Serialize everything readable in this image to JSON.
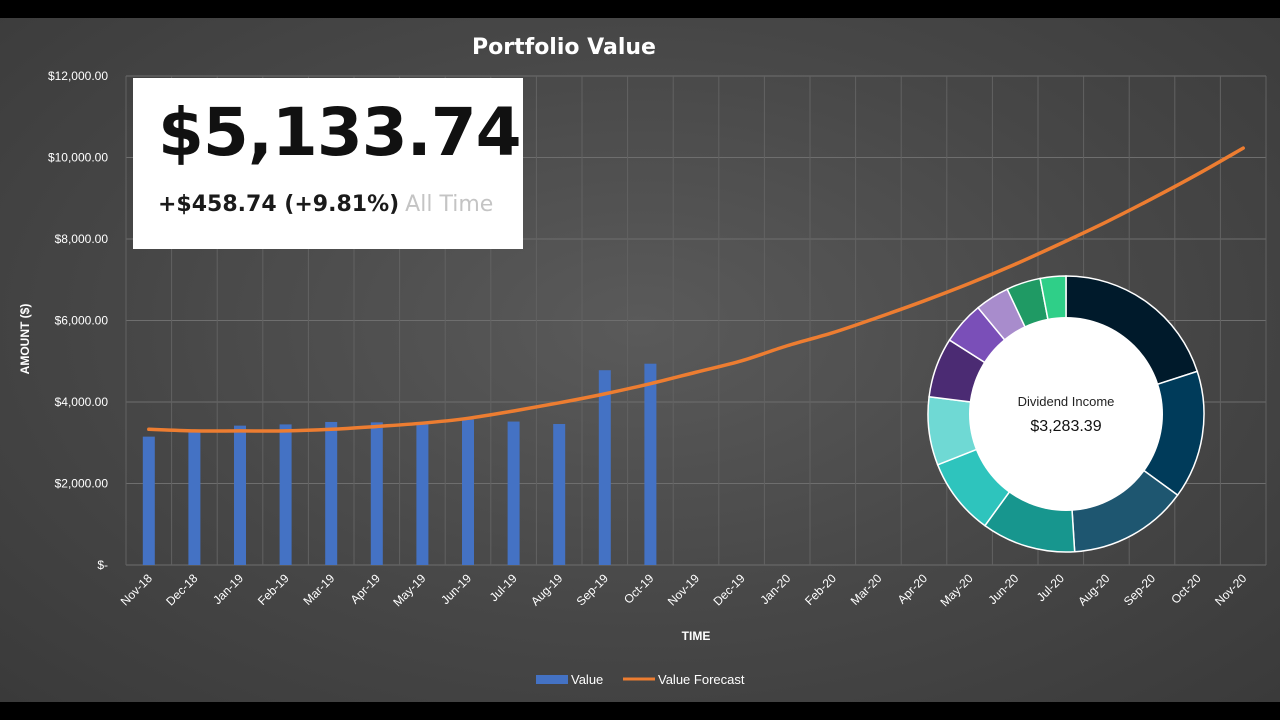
{
  "chart_data": [
    {
      "type": "bar+line",
      "title": "Portfolio Value",
      "xlabel": "TIME",
      "ylabel": "AMOUNT ($)",
      "ylim": [
        0,
        12000
      ],
      "yticks": [
        0,
        2000,
        4000,
        6000,
        8000,
        10000,
        12000
      ],
      "ytick_labels": [
        "$-",
        "$2,000.00",
        "$4,000.00",
        "$6,000.00",
        "$8,000.00",
        "$10,000.00",
        "$12,000.00"
      ],
      "grid": true,
      "legend": "bottom-center",
      "categories": [
        "Nov-18",
        "Dec-18",
        "Jan-19",
        "Feb-19",
        "Mar-19",
        "Apr-19",
        "May-19",
        "Jun-19",
        "Jul-19",
        "Aug-19",
        "Sep-19",
        "Oct-19",
        "Nov-19",
        "Dec-19",
        "Jan-20",
        "Feb-20",
        "Mar-20",
        "Apr-20",
        "May-20",
        "Jun-20",
        "Jul-20",
        "Aug-20",
        "Sep-20",
        "Oct-20",
        "Nov-20"
      ],
      "series": [
        {
          "name": "Value",
          "kind": "bar",
          "color": "#4472c4",
          "values": [
            3150,
            3280,
            3420,
            3450,
            3510,
            3500,
            3470,
            3570,
            3520,
            3460,
            4780,
            4940,
            null,
            null,
            null,
            null,
            null,
            null,
            null,
            null,
            null,
            null,
            null,
            null,
            null
          ]
        },
        {
          "name": "Value Forecast",
          "kind": "line",
          "color": "#ed7d31",
          "values": [
            3330,
            3290,
            3290,
            3290,
            3330,
            3400,
            3480,
            3600,
            3780,
            3980,
            4200,
            4450,
            4730,
            5010,
            5380,
            5700,
            6080,
            6480,
            6910,
            7380,
            7890,
            8420,
            8990,
            9590,
            10230
          ]
        }
      ]
    },
    {
      "type": "pie",
      "donut": true,
      "center_label": "Dividend Income",
      "center_value": "$3,283.39",
      "slices": [
        {
          "value": 20.0,
          "color": "#001a2b"
        },
        {
          "value": 15.0,
          "color": "#003b5a"
        },
        {
          "value": 14.0,
          "color": "#1e5670"
        },
        {
          "value": 11.0,
          "color": "#17968e"
        },
        {
          "value": 9.0,
          "color": "#2ec4bd"
        },
        {
          "value": 8.0,
          "color": "#6fd9d4"
        },
        {
          "value": 7.0,
          "color": "#4b2b73"
        },
        {
          "value": 5.0,
          "color": "#7a4fb8"
        },
        {
          "value": 4.0,
          "color": "#a88ccc"
        },
        {
          "value": 4.0,
          "color": "#1f9a64"
        },
        {
          "value": 3.0,
          "color": "#2fcf88"
        }
      ]
    }
  ],
  "summary": {
    "value": "$5,133.74",
    "change": "+$458.74 (+9.81%)",
    "period": "All Time"
  }
}
